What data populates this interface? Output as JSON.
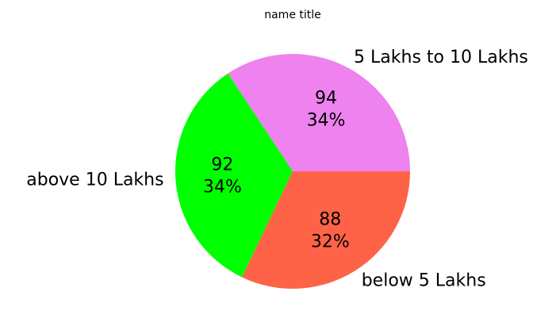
{
  "chart_data": {
    "type": "pie",
    "title": "name title",
    "slices": [
      {
        "label": "5 Lakhs to 10 Lakhs",
        "value": 94,
        "percent_label": "34%",
        "color": "#ee82ee"
      },
      {
        "label": "above 10 Lakhs",
        "value": 92,
        "percent_label": "34%",
        "color": "#00ff00"
      },
      {
        "label": "below 5 Lakhs",
        "value": 88,
        "percent_label": "32%",
        "color": "#ff6347"
      }
    ],
    "start_angle_deg": 0,
    "direction": "counterclockwise",
    "legend": "none"
  }
}
